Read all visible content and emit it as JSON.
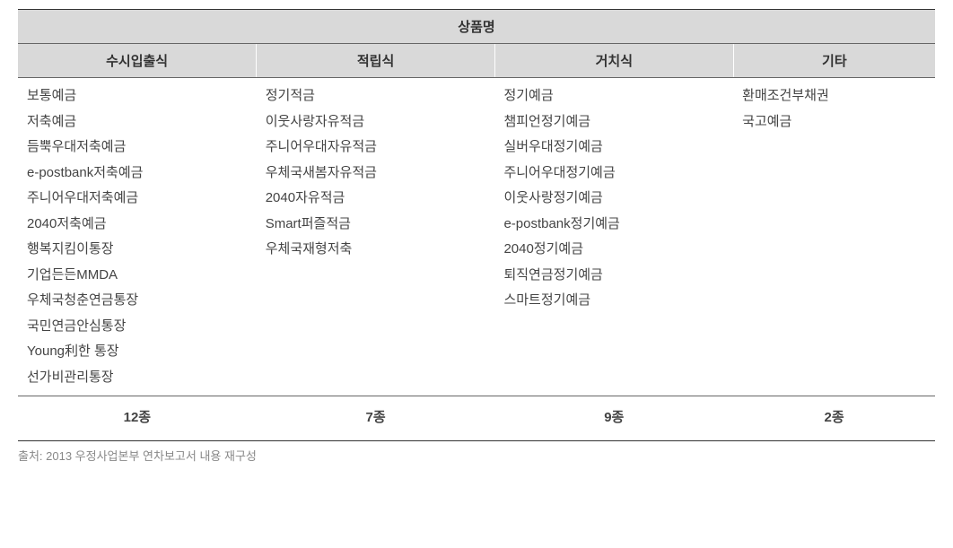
{
  "table": {
    "main_header": "상품명",
    "columns": [
      "수시입출식",
      "적립식",
      "거치식",
      "기타"
    ],
    "widths": [
      "26%",
      "26%",
      "26%",
      "22%"
    ],
    "data": {
      "col1": [
        "보통예금",
        "저축예금",
        "듬뿍우대저축예금",
        "e-postbank저축예금",
        "주니어우대저축예금",
        "2040저축예금",
        "행복지킴이통장",
        "기업든든MMDA",
        "우체국청춘연금통장",
        "국민연금안심통장",
        "Young利한 통장",
        "선가비관리통장"
      ],
      "col2": [
        "정기적금",
        "이웃사랑자유적금",
        "주니어우대자유적금",
        "우체국새봄자유적금",
        "2040자유적금",
        "Smart퍼즐적금",
        "우체국재형저축"
      ],
      "col3": [
        "정기예금",
        "챔피언정기예금",
        "실버우대정기예금",
        "주니어우대정기예금",
        "이웃사랑정기예금",
        "e-postbank정기예금",
        "2040정기예금",
        "퇴직연금정기예금",
        "스마트정기예금"
      ],
      "col4": [
        "환매조건부채권",
        "국고예금"
      ]
    },
    "totals": [
      "12종",
      "7종",
      "9종",
      "2종"
    ]
  },
  "source": "출처: 2013 우정사업본부 연차보고서 내용 재구성",
  "style": {
    "header_bg": "#d9d9d9",
    "border_color": "#333333",
    "text_color": "#444444",
    "source_color": "#888888",
    "font_size_body": 15,
    "font_size_source": 13,
    "line_height": 1.9
  }
}
